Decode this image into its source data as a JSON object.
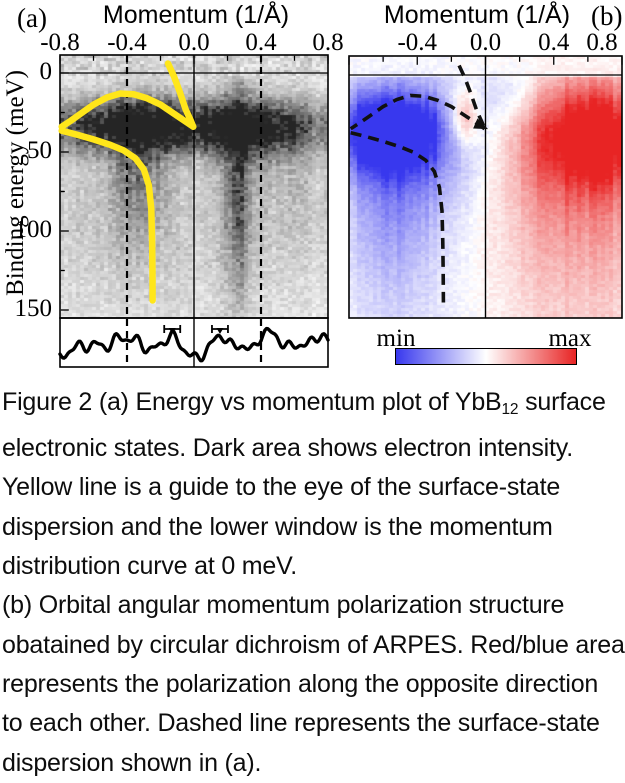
{
  "figure": {
    "panel_a_label": "(a)",
    "panel_b_label": "(b)",
    "momentum_axis_title": "Momentum (1/Å)",
    "binding_energy_axis_title": "Binding energy (meV)",
    "panel_a_xtick_labels": [
      "-0.8",
      "-0.4",
      "0.0",
      "0.4",
      "0.8"
    ],
    "panel_b_xtick_labels": [
      "-0.4",
      "0.0",
      "0.4",
      "0.8"
    ],
    "ytick_labels": [
      "0",
      "50",
      "100",
      "150"
    ],
    "colorbar": {
      "min_label": "min",
      "max_label": "max",
      "blue": "#3838ee",
      "white": "#ffffff",
      "red": "#e82424"
    },
    "guide_line_color": "#ffe61a"
  },
  "caption": {
    "line1": {
      "pre": "Figure 2 (a) Energy vs momentum plot of YbB",
      "sub": "12",
      "post": " surface"
    },
    "lines": [
      "electronic states. Dark area shows electron intensity.",
      "Yellow line is a guide to the eye of the surface-state",
      "dispersion and the lower window is the momentum",
      "distribution curve at 0 meV.",
      "(b) Orbital angular momentum polarization structure",
      "obatained by circular dichroism of ARPES. Red/blue area",
      "represents the polarization along the opposite direction",
      "to each other. Dashed line represents the surface-state",
      "dispersion shown in (a)."
    ]
  },
  "chart_data": [
    {
      "type": "heatmap",
      "panel": "a",
      "title": "Momentum (1/Å)",
      "xlabel": "Momentum (1/Å)",
      "ylabel": "Binding energy (meV)",
      "x_range": [
        -0.8,
        0.8
      ],
      "x_ticks": [
        -0.8,
        -0.4,
        0.0,
        0.4,
        0.8
      ],
      "x_minor_tick_step": 0.2,
      "y_range_meV": [
        -11,
        155
      ],
      "y_ticks": [
        0,
        50,
        100,
        150
      ],
      "y_minor_tick_step": 25,
      "colormap": "grayscale; dark = high electron intensity",
      "vertical_dashed_lines_k": [
        -0.4,
        0.4
      ],
      "vertical_solid_line_k": 0.0,
      "fermi_level_line_meV": 0,
      "intensity_features": [
        {
          "k": -0.35,
          "E": 33,
          "sk": 0.3,
          "sE": 11,
          "amp": 0.72
        },
        {
          "k": 0.33,
          "E": 36,
          "sk": 0.22,
          "sE": 12,
          "amp": 0.62
        },
        {
          "k": 0.0,
          "E": 33,
          "sk": 1.0,
          "sE": 11,
          "amp": 0.4
        },
        {
          "k": 0.26,
          "E": 72,
          "sk": 0.055,
          "sE": 50,
          "amp": 0.52
        },
        {
          "k": -0.33,
          "E": 60,
          "sk": 0.1,
          "sE": 26,
          "amp": 0.35
        },
        {
          "k": 0.0,
          "E": 85,
          "sk": 1.0,
          "sE": 75,
          "amp": 0.2
        },
        {
          "k": -0.5,
          "E": 80,
          "sk": 0.35,
          "sE": 55,
          "amp": 0.1
        },
        {
          "k": 0.6,
          "E": 60,
          "sk": 0.25,
          "sE": 40,
          "amp": 0.12
        }
      ],
      "surface_state_guide_kE": {
        "upper_branch": [
          [
            -0.155,
            -6
          ],
          [
            -0.12,
            2
          ],
          [
            -0.085,
            12
          ],
          [
            -0.05,
            23
          ],
          [
            -0.02,
            30
          ],
          [
            -0.005,
            34
          ]
        ],
        "hook": [
          [
            -0.005,
            34
          ],
          [
            -0.06,
            30
          ],
          [
            -0.13,
            25
          ],
          [
            -0.2,
            20
          ],
          [
            -0.28,
            16
          ],
          [
            -0.36,
            13.5
          ],
          [
            -0.44,
            13
          ],
          [
            -0.52,
            15.5
          ],
          [
            -0.6,
            20
          ],
          [
            -0.68,
            26
          ],
          [
            -0.74,
            30.5
          ],
          [
            -0.79,
            34
          ]
        ],
        "lower_branch": [
          [
            -0.79,
            36.5
          ],
          [
            -0.7,
            39
          ],
          [
            -0.6,
            42
          ],
          [
            -0.5,
            45.5
          ],
          [
            -0.42,
            49
          ],
          [
            -0.35,
            54
          ],
          [
            -0.3,
            61
          ],
          [
            -0.27,
            71
          ],
          [
            -0.255,
            86
          ],
          [
            -0.25,
            106
          ],
          [
            -0.248,
            126
          ],
          [
            -0.247,
            144
          ]
        ]
      },
      "mdc": {
        "label": "momentum distribution curve at 0 meV",
        "baseline": 0.15,
        "peaks": [
          {
            "k": -0.7,
            "h": 0.3,
            "w": 0.045
          },
          {
            "k": -0.58,
            "h": 0.38,
            "w": 0.04
          },
          {
            "k": -0.45,
            "h": 0.62,
            "w": 0.05
          },
          {
            "k": -0.335,
            "h": 0.45,
            "w": 0.04
          },
          {
            "k": -0.22,
            "h": 0.3,
            "w": 0.035
          },
          {
            "k": -0.13,
            "h": 0.6,
            "w": 0.045
          },
          {
            "k": 0.15,
            "h": 0.62,
            "w": 0.05
          },
          {
            "k": 0.28,
            "h": 0.38,
            "w": 0.04
          },
          {
            "k": 0.4,
            "h": 0.45,
            "w": 0.038
          },
          {
            "k": 0.475,
            "h": 0.65,
            "w": 0.045
          },
          {
            "k": 0.6,
            "h": 0.42,
            "w": 0.04
          },
          {
            "k": 0.72,
            "h": 0.42,
            "w": 0.045
          },
          {
            "k": 0.8,
            "h": 0.45,
            "w": 0.05
          }
        ],
        "marker_k": [
          -0.13,
          0.155
        ]
      }
    },
    {
      "type": "heatmap",
      "panel": "b",
      "title": "Momentum (1/Å)",
      "x_range": [
        -0.8,
        0.8
      ],
      "x_ticks": [
        -0.4,
        0.0,
        0.4,
        0.8
      ],
      "x_minor_tick_step": 0.2,
      "y_range_meV": [
        -12,
        154
      ],
      "colormap": "diverging blue-white-red; orbital angular momentum polarization from circular dichroism",
      "vertical_solid_line_k": 0.0,
      "fermi_level_line_meV": 0,
      "colorbar": {
        "min_label": "min",
        "max_label": "max"
      },
      "dashed_guide": "same surface-state dispersion as panel (a)",
      "arrow": {
        "k": -0.02,
        "meV": 33,
        "angle_deg": 24
      },
      "polarization_features": [
        {
          "k": -0.58,
          "E": 36,
          "sk": 0.24,
          "sE": 17,
          "amp": -1.1
        },
        {
          "k": -0.45,
          "E": 45,
          "sk": 0.3,
          "sE": 33,
          "amp": -0.45
        },
        {
          "k": -0.55,
          "E": 90,
          "sk": 0.17,
          "sE": 45,
          "amp": -0.3
        },
        {
          "k": -0.4,
          "E": 110,
          "sk": 0.35,
          "sE": 85,
          "amp": -0.13
        },
        {
          "k": -0.13,
          "E": 28,
          "sk": 0.06,
          "sE": 13,
          "amp": 0.62
        },
        {
          "k": 0.15,
          "E": 12,
          "sk": 0.12,
          "sE": 14,
          "amp": -0.25
        },
        {
          "k": 0.62,
          "E": 38,
          "sk": 0.24,
          "sE": 22,
          "amp": 1.0
        },
        {
          "k": 0.55,
          "E": 62,
          "sk": 0.33,
          "sE": 42,
          "amp": 0.42
        },
        {
          "k": 0.5,
          "E": 120,
          "sk": 0.38,
          "sE": 75,
          "amp": 0.22
        }
      ]
    }
  ]
}
